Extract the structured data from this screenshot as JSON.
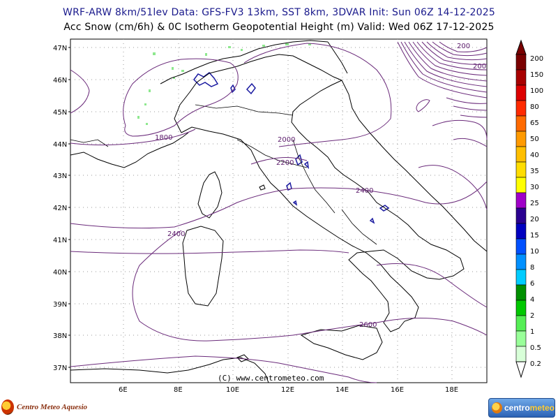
{
  "header": {
    "line1": "WRF-ARW 8km/51lev  Data: GFS-FV3 13km, SST 8km, 3DVAR  Init: Sun 06Z 14-12-2025",
    "line2": "Acc Snow (cm/6h) & 0C Isotherm Geopotential Height (m)  Valid: Wed 06Z 17-12-2025"
  },
  "map": {
    "latitude_labels": [
      "47N",
      "46N",
      "45N",
      "44N",
      "43N",
      "42N",
      "41N",
      "40N",
      "39N",
      "38N",
      "37N"
    ],
    "longitude_labels": [
      "6E",
      "8E",
      "10E",
      "12E",
      "14E",
      "16E",
      "18E"
    ],
    "contour_labels": [
      "200",
      "200",
      "1800",
      "2000",
      "2200",
      "2400",
      "2400",
      "2600"
    ],
    "copyright": "(C) www.centrometeo.com",
    "colors": {
      "coast": "#000000",
      "isotherm": "#6a2a7a",
      "snow_blue": "#1a1aa0",
      "snow_green": "#8ee88e",
      "grid": "#888888"
    }
  },
  "colorbar": {
    "labels": [
      "200",
      "150",
      "100",
      "80",
      "65",
      "50",
      "40",
      "35",
      "30",
      "25",
      "20",
      "15",
      "10",
      "8",
      "6",
      "4",
      "2",
      "1",
      "0.5",
      "0.2"
    ],
    "colors": [
      "#7a0000",
      "#a80000",
      "#dd0000",
      "#ff2a00",
      "#ff6a00",
      "#ff9a00",
      "#ffbf00",
      "#ffdd00",
      "#ffff00",
      "#a000c8",
      "#2a0090",
      "#0000c0",
      "#0050ff",
      "#0090ff",
      "#00ccff",
      "#009000",
      "#00c800",
      "#55ee55",
      "#99ff99",
      "#d8ffd8"
    ]
  },
  "footer": {
    "left_logo": "Centro Meteo Aquesio",
    "right_logo_a": "centro",
    "right_logo_b": "meteo"
  }
}
